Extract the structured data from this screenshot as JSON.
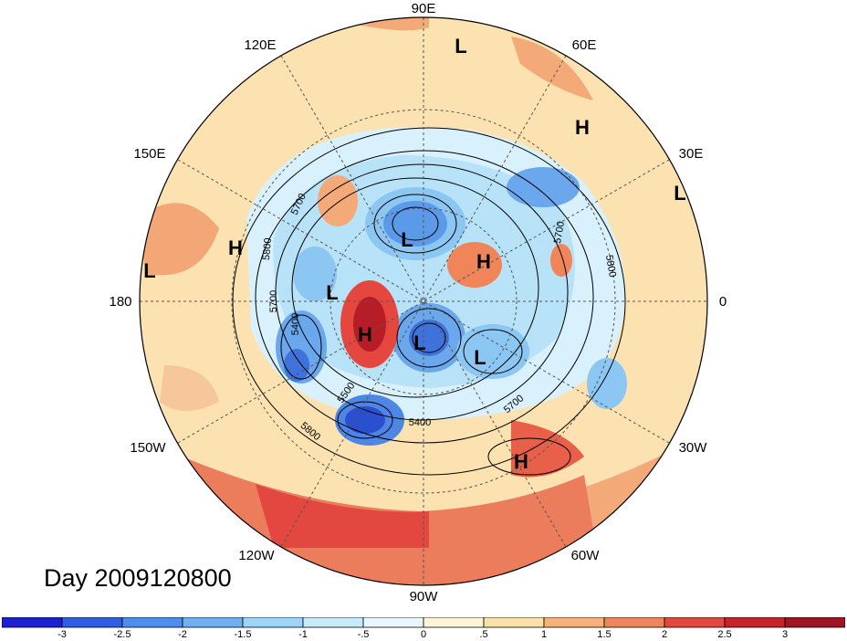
{
  "title": "Day 2009120800",
  "longitude_labels": [
    {
      "text": "90E",
      "angle": -90
    },
    {
      "text": "60E",
      "angle": -60
    },
    {
      "text": "30E",
      "angle": -30
    },
    {
      "text": "0",
      "angle": 0
    },
    {
      "text": "30W",
      "angle": 30
    },
    {
      "text": "60W",
      "angle": 60
    },
    {
      "text": "90W",
      "angle": 90
    },
    {
      "text": "120W",
      "angle": 120
    },
    {
      "text": "150W",
      "angle": 150
    },
    {
      "text": "180",
      "angle": 180
    },
    {
      "text": "150E",
      "angle": 210
    },
    {
      "text": "120E",
      "angle": 240
    }
  ],
  "pressure_centers": [
    {
      "label": "L",
      "name": "low-center-northern-europe"
    },
    {
      "label": "H",
      "name": "high-center-scandinavia"
    },
    {
      "label": "L",
      "name": "low-center-africa"
    },
    {
      "label": "L",
      "name": "low-center-siberia"
    },
    {
      "label": "H",
      "name": "high-center-ural"
    },
    {
      "label": "L",
      "name": "low-center-kamchatka"
    },
    {
      "label": "H",
      "name": "high-center-alaska"
    },
    {
      "label": "L",
      "name": "low-center-hudson-bay"
    },
    {
      "label": "L",
      "name": "low-center-greenland"
    },
    {
      "label": "H",
      "name": "high-center-atlantic"
    },
    {
      "label": "H",
      "name": "high-center-pacific"
    },
    {
      "label": "L",
      "name": "low-center-west-pacific"
    }
  ],
  "contour_labels": [
    "5700",
    "5800",
    "5700",
    "5400",
    "5500",
    "5800",
    "5400",
    "5700",
    "5800",
    "5700"
  ],
  "colorbar": {
    "ticks": [
      "-3",
      "-2.5",
      "-2",
      "-1.5",
      "-1",
      "-.5",
      "0",
      ".5",
      "1",
      "1.5",
      "2",
      "2.5",
      "3"
    ],
    "colors": [
      "#1e1ed2",
      "#2f5ee6",
      "#4a8ef0",
      "#6fb0f5",
      "#9dd4fa",
      "#c6ecfc",
      "#e8f7fd",
      "#fdf5d6",
      "#fbe0a8",
      "#f7b27a",
      "#f0855a",
      "#e5473e",
      "#c8232b",
      "#a01424"
    ]
  }
}
